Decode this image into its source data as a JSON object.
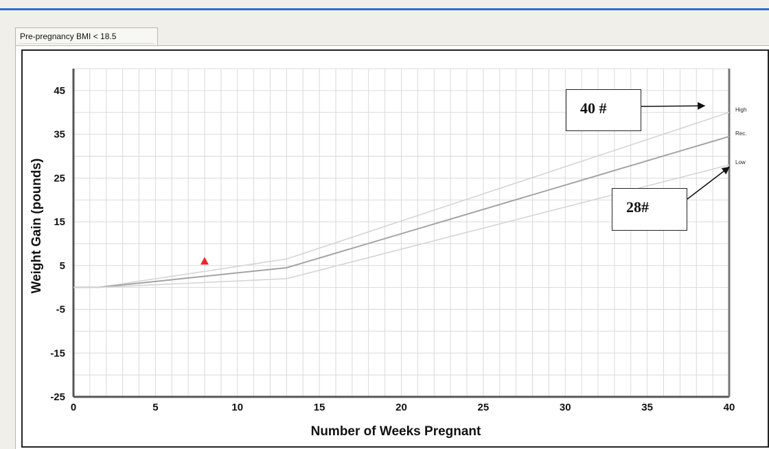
{
  "tab": {
    "label": "Pre-pregnancy BMI < 18.5"
  },
  "chart_data": {
    "type": "line",
    "xlabel": "Number of Weeks Pregnant",
    "ylabel": "Weight Gain (pounds)",
    "xlim": [
      0,
      40
    ],
    "ylim": [
      -25,
      50
    ],
    "x_ticks": [
      0,
      5,
      10,
      15,
      20,
      25,
      30,
      35,
      40
    ],
    "y_ticks": [
      45,
      35,
      25,
      15,
      5,
      -5,
      -15,
      -25
    ],
    "grid": true,
    "series": [
      {
        "name": "High",
        "color": "#d4d4d4",
        "x": [
          0,
          1.5,
          13,
          40
        ],
        "y": [
          0,
          0,
          6.5,
          40
        ]
      },
      {
        "name": "Rec.",
        "color": "#a3a3a3",
        "x": [
          0,
          1.5,
          13,
          40
        ],
        "y": [
          0,
          0,
          4.5,
          34.5
        ]
      },
      {
        "name": "Low",
        "color": "#d4d4d4",
        "x": [
          0,
          1.5,
          13,
          40
        ],
        "y": [
          0,
          0,
          2,
          28
        ]
      }
    ],
    "markers": [
      {
        "x": 8,
        "y": 6,
        "shape": "triangle",
        "color": "#e8262b"
      }
    ],
    "annotations": [
      {
        "text": "40 #",
        "points_to": {
          "x": 38.5,
          "y": 41.5
        }
      },
      {
        "text": "28#",
        "points_to": {
          "x": 40,
          "y": 27.5
        }
      }
    ]
  }
}
